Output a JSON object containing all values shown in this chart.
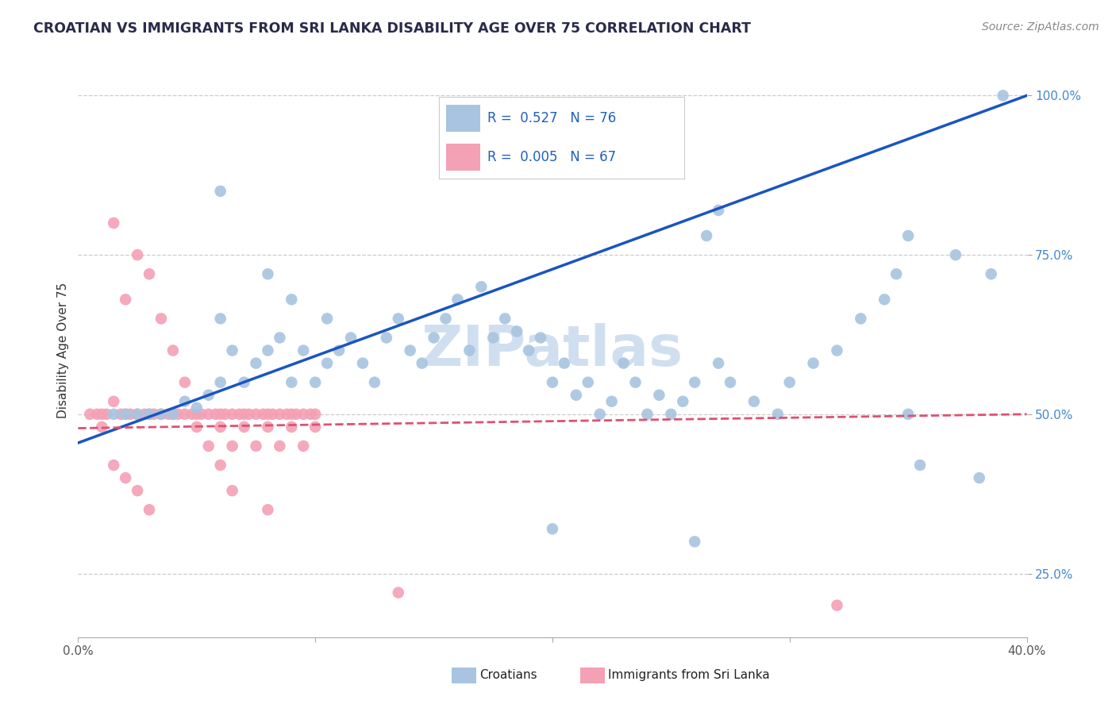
{
  "title": "CROATIAN VS IMMIGRANTS FROM SRI LANKA DISABILITY AGE OVER 75 CORRELATION CHART",
  "source": "Source: ZipAtlas.com",
  "ylabel": "Disability Age Over 75",
  "xlim": [
    0.0,
    0.4
  ],
  "ylim": [
    0.15,
    1.05
  ],
  "xticks": [
    0.0,
    0.1,
    0.2,
    0.3,
    0.4
  ],
  "xticklabels": [
    "0.0%",
    "",
    "",
    "",
    "40.0%"
  ],
  "yticks": [
    0.25,
    0.5,
    0.75,
    1.0
  ],
  "yticklabels": [
    "25.0%",
    "50.0%",
    "75.0%",
    "100.0%"
  ],
  "croatians_color": "#a8c4e0",
  "sri_lanka_color": "#f4a0b5",
  "line_croatians_color": "#1a55c0",
  "line_sri_lanka_color": "#e05070",
  "watermark": "ZIPatlas",
  "watermark_color": "#d0dff0",
  "legend_R_croatians": "0.527",
  "legend_N_croatians": "76",
  "legend_R_sri_lanka": "0.005",
  "legend_N_sri_lanka": "67",
  "background_color": "#ffffff",
  "grid_color": "#cccccc",
  "title_color": "#2a2a4a",
  "source_color": "#888888",
  "yticklabel_color": "#4488cc",
  "xticklabel_color": "#555555",
  "croatians_x": [
    0.015,
    0.02,
    0.025,
    0.03,
    0.035,
    0.04,
    0.045,
    0.05,
    0.055,
    0.06,
    0.06,
    0.065,
    0.07,
    0.075,
    0.08,
    0.08,
    0.085,
    0.09,
    0.09,
    0.095,
    0.1,
    0.105,
    0.105,
    0.11,
    0.115,
    0.12,
    0.125,
    0.13,
    0.135,
    0.14,
    0.145,
    0.15,
    0.155,
    0.16,
    0.165,
    0.17,
    0.175,
    0.18,
    0.185,
    0.19,
    0.195,
    0.2,
    0.205,
    0.21,
    0.215,
    0.22,
    0.225,
    0.23,
    0.235,
    0.24,
    0.245,
    0.25,
    0.255,
    0.26,
    0.265,
    0.27,
    0.275,
    0.285,
    0.295,
    0.3,
    0.31,
    0.32,
    0.33,
    0.34,
    0.345,
    0.35,
    0.355,
    0.37,
    0.38,
    0.385,
    0.39,
    0.06,
    0.2,
    0.35,
    0.26,
    0.27
  ],
  "croatians_y": [
    0.5,
    0.5,
    0.5,
    0.5,
    0.5,
    0.5,
    0.52,
    0.51,
    0.53,
    0.55,
    0.65,
    0.6,
    0.55,
    0.58,
    0.6,
    0.72,
    0.62,
    0.55,
    0.68,
    0.6,
    0.55,
    0.58,
    0.65,
    0.6,
    0.62,
    0.58,
    0.55,
    0.62,
    0.65,
    0.6,
    0.58,
    0.62,
    0.65,
    0.68,
    0.6,
    0.7,
    0.62,
    0.65,
    0.63,
    0.6,
    0.62,
    0.55,
    0.58,
    0.53,
    0.55,
    0.5,
    0.52,
    0.58,
    0.55,
    0.5,
    0.53,
    0.5,
    0.52,
    0.55,
    0.78,
    0.58,
    0.55,
    0.52,
    0.5,
    0.55,
    0.58,
    0.6,
    0.65,
    0.68,
    0.72,
    0.5,
    0.42,
    0.75,
    0.4,
    0.72,
    1.0,
    0.85,
    0.32,
    0.78,
    0.3,
    0.82
  ],
  "sri_lanka_x": [
    0.005,
    0.008,
    0.01,
    0.012,
    0.015,
    0.015,
    0.018,
    0.02,
    0.02,
    0.022,
    0.025,
    0.025,
    0.028,
    0.03,
    0.03,
    0.032,
    0.035,
    0.035,
    0.038,
    0.04,
    0.04,
    0.042,
    0.045,
    0.045,
    0.048,
    0.05,
    0.05,
    0.052,
    0.055,
    0.055,
    0.058,
    0.06,
    0.06,
    0.062,
    0.065,
    0.065,
    0.068,
    0.07,
    0.07,
    0.072,
    0.075,
    0.075,
    0.078,
    0.08,
    0.08,
    0.082,
    0.085,
    0.085,
    0.088,
    0.09,
    0.09,
    0.092,
    0.095,
    0.095,
    0.098,
    0.1,
    0.1,
    0.01,
    0.015,
    0.02,
    0.025,
    0.03,
    0.06,
    0.065,
    0.08,
    0.135,
    0.32
  ],
  "sri_lanka_y": [
    0.5,
    0.5,
    0.5,
    0.5,
    0.52,
    0.8,
    0.5,
    0.5,
    0.68,
    0.5,
    0.5,
    0.75,
    0.5,
    0.5,
    0.72,
    0.5,
    0.5,
    0.65,
    0.5,
    0.5,
    0.6,
    0.5,
    0.5,
    0.55,
    0.5,
    0.5,
    0.48,
    0.5,
    0.5,
    0.45,
    0.5,
    0.5,
    0.48,
    0.5,
    0.5,
    0.45,
    0.5,
    0.5,
    0.48,
    0.5,
    0.5,
    0.45,
    0.5,
    0.5,
    0.48,
    0.5,
    0.5,
    0.45,
    0.5,
    0.5,
    0.48,
    0.5,
    0.5,
    0.45,
    0.5,
    0.5,
    0.48,
    0.48,
    0.42,
    0.4,
    0.38,
    0.35,
    0.42,
    0.38,
    0.35,
    0.22,
    0.2
  ]
}
